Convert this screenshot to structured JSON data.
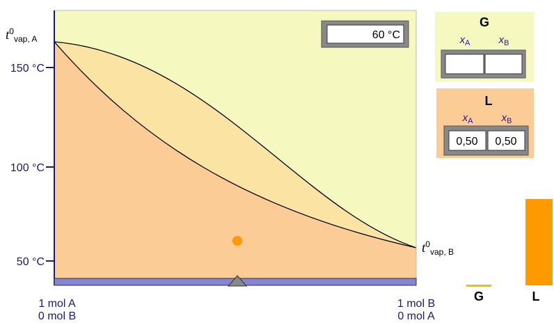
{
  "temperature_display": "60 °C",
  "axis": {
    "ticks": [
      "150 °C",
      "100 °C",
      "50 °C"
    ]
  },
  "boiling_point_A": {
    "symbol": "t",
    "sup": "0",
    "sub": "vap, A"
  },
  "boiling_point_B": {
    "symbol": "t",
    "sup": "0",
    "sub": "vap, B"
  },
  "composition_left": [
    "1 mol A",
    "0 mol B"
  ],
  "composition_right": [
    "1 mol B",
    "0 mol A"
  ],
  "gas_panel": {
    "title": "G",
    "headers": [
      {
        "var": "x",
        "sub": "A"
      },
      {
        "var": "x",
        "sub": "B"
      }
    ]
  },
  "liquid_panel": {
    "title": "L",
    "headers": [
      {
        "var": "x",
        "sub": "A"
      },
      {
        "var": "x",
        "sub": "B"
      }
    ],
    "values": [
      "0,50",
      "0,50"
    ]
  },
  "bars": {
    "gas_label": "G",
    "liquid_label": "L"
  }
}
